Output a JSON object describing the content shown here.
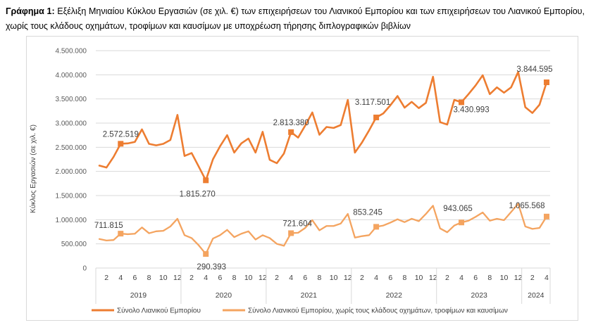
{
  "caption": {
    "prefix": "Γράφημα 1:",
    "text": "Εξέλιξη Μηνιαίου Κύκλου Εργασιών (σε χιλ. €) των επιχειρήσεων του Λιανικού Εμπορίου και των επιχειρήσεων του Λιανικού Εμπορίου, χωρίς τους κλάδους οχημάτων, τροφίμων και καυσίμων με υποχρέωση τήρησης διπλογραφικών βιβλίων"
  },
  "colors": {
    "dark_orange": "#ED7D31",
    "light_orange": "#F4A460",
    "grid": "#d9d9d9",
    "axis_text": "#595959"
  },
  "chart_data": {
    "type": "line",
    "title": "",
    "ylabel": "Κύκλος Εργασιών (σε χιλ. €)",
    "ylim": [
      0,
      4500000
    ],
    "yticks": [
      "0",
      "500.000",
      "1.000.000",
      "1.500.000",
      "2.000.000",
      "2.500.000",
      "3.000.000",
      "3.500.000",
      "4.000.000",
      "4.500.000"
    ],
    "x_month_labels": [
      "2",
      "4",
      "6",
      "8",
      "10",
      "12",
      "2",
      "4",
      "6",
      "8",
      "10",
      "12",
      "2",
      "4",
      "6",
      "8",
      "10",
      "12",
      "2",
      "4",
      "6",
      "8",
      "10",
      "12",
      "2",
      "4",
      "6",
      "8",
      "10",
      "12",
      "2",
      "4"
    ],
    "years": [
      "2019",
      "2020",
      "2021",
      "2022",
      "2023",
      "2024"
    ],
    "months_per_year": [
      12,
      12,
      12,
      12,
      12,
      4
    ],
    "legend_position": "bottom",
    "series": [
      {
        "name": "Σύνολο Λιανικού Εμπορίου",
        "values": [
          2120000,
          2080000,
          2300000,
          2572519,
          2580000,
          2610000,
          2870000,
          2570000,
          2540000,
          2570000,
          2650000,
          3170000,
          2320000,
          2380000,
          2100000,
          1815270,
          2250000,
          2520000,
          2750000,
          2390000,
          2580000,
          2680000,
          2390000,
          2820000,
          2240000,
          2170000,
          2370000,
          2813380,
          2700000,
          2950000,
          3220000,
          2760000,
          2920000,
          2900000,
          2960000,
          3480000,
          2390000,
          2600000,
          2850000,
          3117501,
          3200000,
          3370000,
          3560000,
          3320000,
          3440000,
          3310000,
          3420000,
          3960000,
          3020000,
          2970000,
          3480000,
          3430993,
          3600000,
          3780000,
          3990000,
          3600000,
          3740000,
          3630000,
          3740000,
          4060000,
          3330000,
          3210000,
          3380000,
          3844595
        ],
        "markers": [
          {
            "index": 3,
            "label": "2.572.519"
          },
          {
            "index": 15,
            "label": "1.815.270"
          },
          {
            "index": 27,
            "label": "2.813.380"
          },
          {
            "index": 39,
            "label": "3.117.501"
          },
          {
            "index": 51,
            "label": "3.430.993"
          },
          {
            "index": 63,
            "label": "3.844.595"
          }
        ]
      },
      {
        "name": "Σύνολο Λιανικού Εμπορίου, χωρίς τους κλάδους οχημάτων, τροφίμων και καυσίμων",
        "values": [
          600000,
          570000,
          580000,
          711815,
          700000,
          710000,
          840000,
          720000,
          760000,
          770000,
          860000,
          1020000,
          680000,
          620000,
          470000,
          290393,
          610000,
          680000,
          790000,
          640000,
          710000,
          760000,
          590000,
          680000,
          620000,
          500000,
          460000,
          721604,
          730000,
          830000,
          990000,
          780000,
          870000,
          870000,
          920000,
          1120000,
          630000,
          660000,
          680000,
          853245,
          880000,
          940000,
          1010000,
          950000,
          1020000,
          970000,
          1120000,
          1290000,
          820000,
          740000,
          880000,
          943065,
          980000,
          1060000,
          1150000,
          980000,
          1020000,
          990000,
          1160000,
          1330000,
          860000,
          810000,
          830000,
          1065568
        ],
        "markers": [
          {
            "index": 3,
            "label": "711.815"
          },
          {
            "index": 15,
            "label": "290.393"
          },
          {
            "index": 27,
            "label": "721.604"
          },
          {
            "index": 39,
            "label": "853.245"
          },
          {
            "index": 51,
            "label": "943.065"
          },
          {
            "index": 63,
            "label": "1.065.568"
          }
        ]
      }
    ]
  }
}
